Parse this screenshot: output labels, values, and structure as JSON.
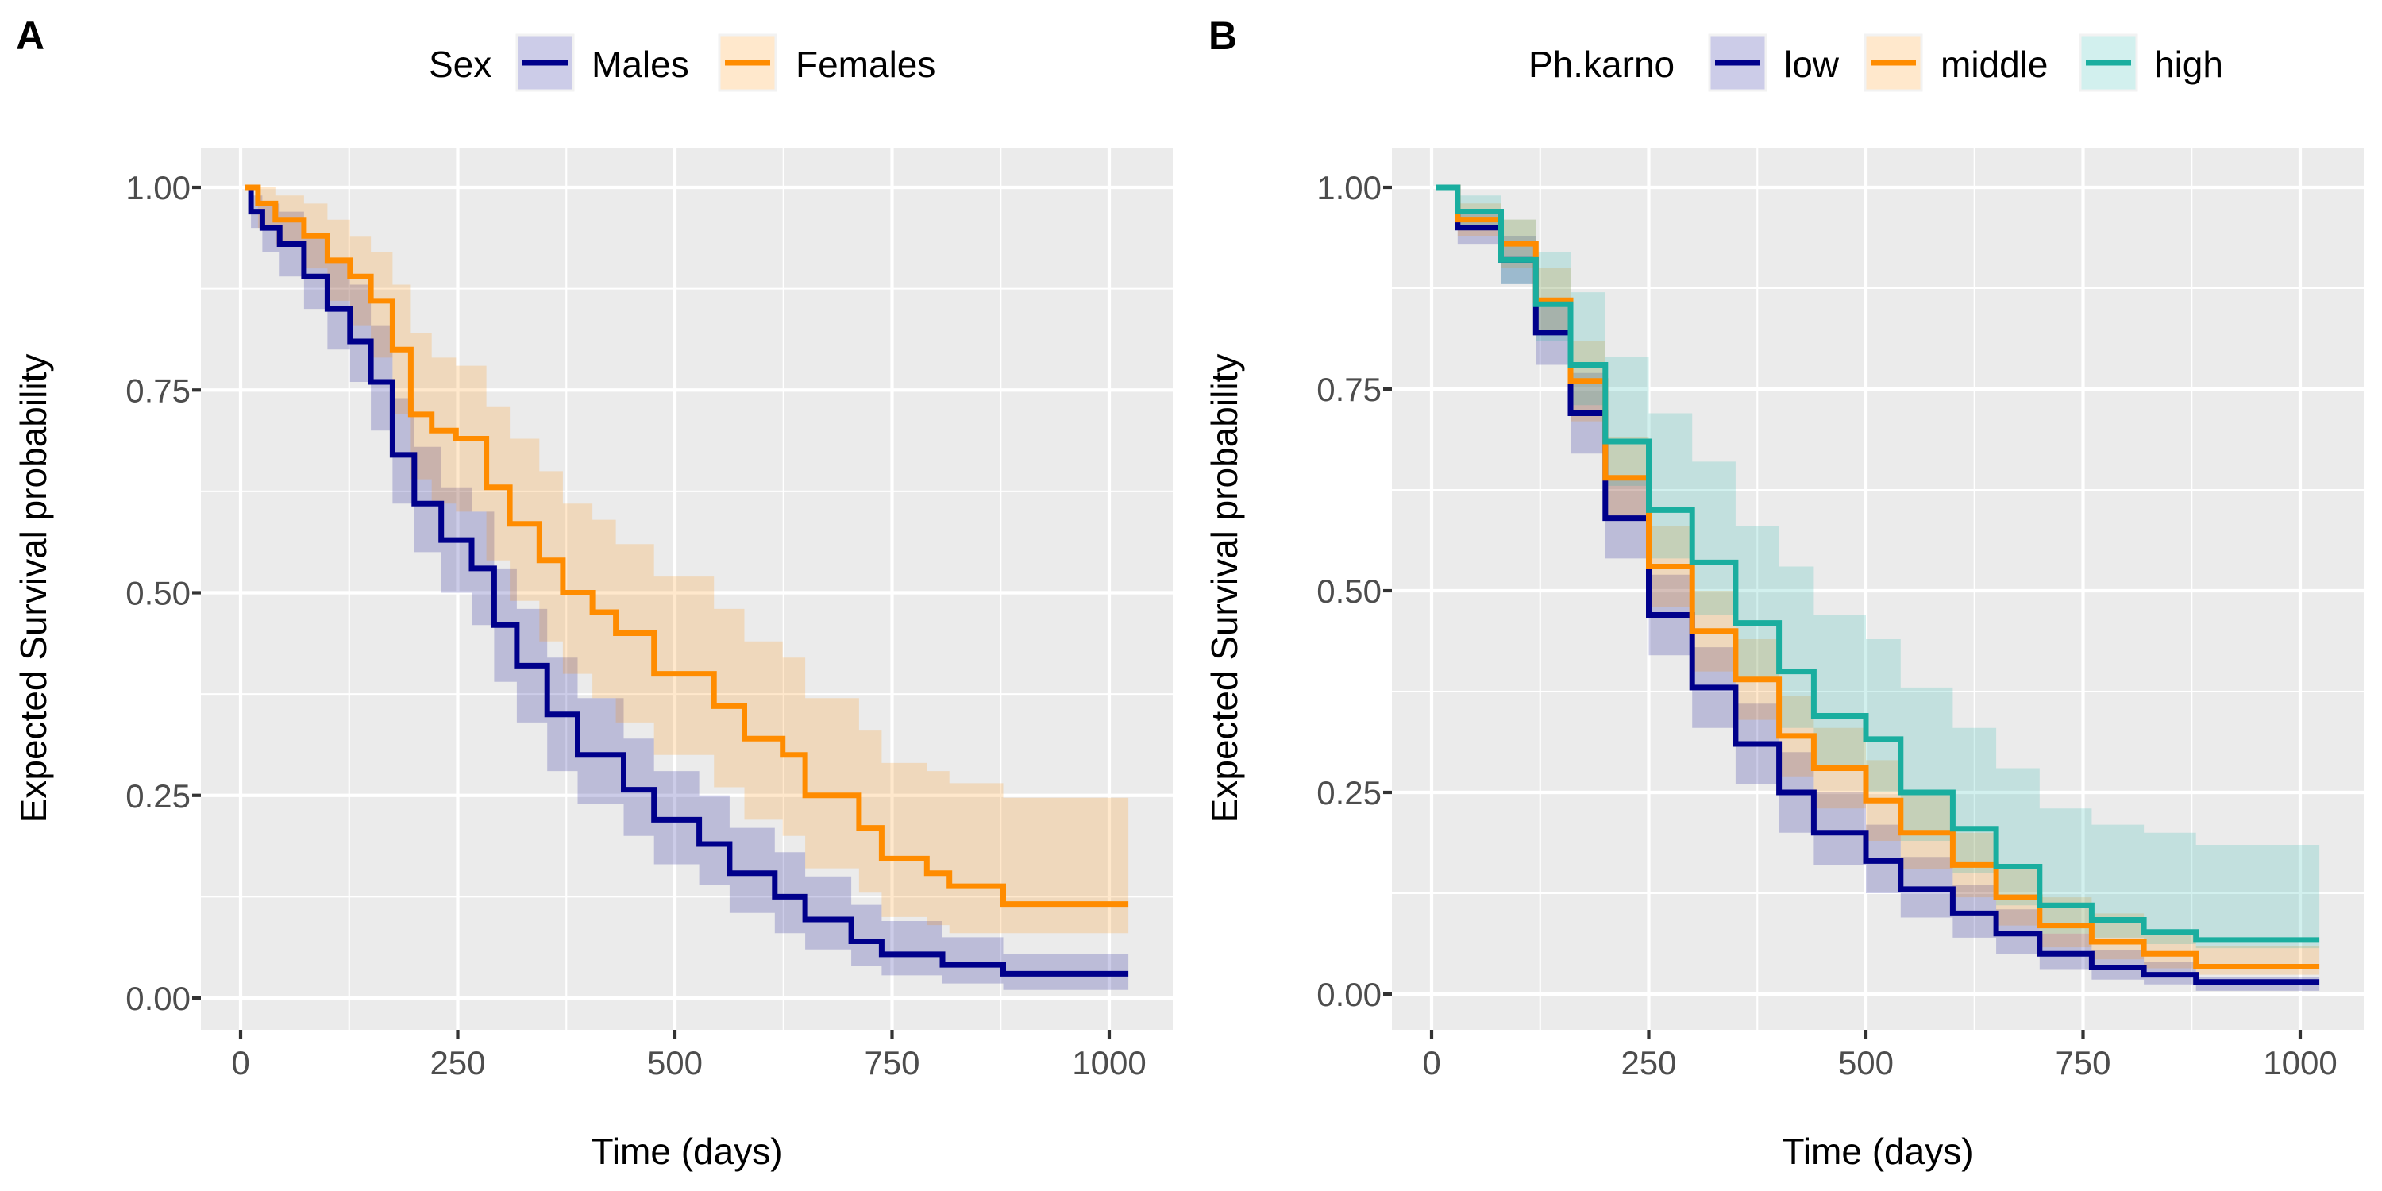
{
  "figure": {
    "panels": [
      {
        "id": "A",
        "letter": "A",
        "legend_title": "Sex",
        "x_title": "Time (days)",
        "y_title": "Expected Survival probability"
      },
      {
        "id": "B",
        "letter": "B",
        "legend_title": "Ph.karno",
        "x_title": "Time (days)",
        "y_title": "Expected Survival probability"
      }
    ]
  },
  "chart_data": [
    {
      "type": "line",
      "subtype": "step-survival-with-confidence-band",
      "panel": "A",
      "title": "",
      "xlabel": "Time (days)",
      "ylabel": "Expected Survival probability",
      "xlim": [
        -45,
        1065
      ],
      "ylim": [
        -0.05,
        1.05
      ],
      "x_ticks": [
        0,
        250,
        500,
        750,
        1000
      ],
      "x_tick_labels": [
        "0",
        "250",
        "500",
        "750",
        "1000"
      ],
      "y_ticks": [
        0,
        0.25,
        0.5,
        0.75,
        1.0
      ],
      "y_tick_labels": [
        "0.00",
        "0.25",
        "0.50",
        "0.75",
        "1.00"
      ],
      "grid": true,
      "legend": {
        "title": "Sex",
        "position": "top"
      },
      "series": [
        {
          "name": "Males",
          "color": "#00008B",
          "fill": "#00008B",
          "x": [
            5,
            12,
            25,
            45,
            73,
            100,
            126,
            150,
            175,
            200,
            231,
            266,
            292,
            318,
            353,
            388,
            423,
            441,
            476,
            528,
            563,
            615,
            650,
            703,
            738,
            808,
            878,
            1022
          ],
          "y": [
            1.0,
            0.97,
            0.95,
            0.93,
            0.89,
            0.85,
            0.81,
            0.76,
            0.67,
            0.61,
            0.565,
            0.53,
            0.46,
            0.41,
            0.35,
            0.3,
            0.3,
            0.257,
            0.22,
            0.19,
            0.154,
            0.125,
            0.097,
            0.07,
            0.054,
            0.041,
            0.03,
            0.03
          ],
          "lower": [
            1.0,
            0.95,
            0.92,
            0.89,
            0.85,
            0.8,
            0.76,
            0.7,
            0.61,
            0.55,
            0.5,
            0.46,
            0.39,
            0.34,
            0.28,
            0.24,
            0.24,
            0.2,
            0.165,
            0.14,
            0.105,
            0.08,
            0.06,
            0.04,
            0.028,
            0.018,
            0.01,
            0.01
          ],
          "upper": [
            1.0,
            0.99,
            0.98,
            0.97,
            0.94,
            0.91,
            0.88,
            0.83,
            0.74,
            0.68,
            0.63,
            0.6,
            0.53,
            0.48,
            0.42,
            0.37,
            0.37,
            0.32,
            0.28,
            0.25,
            0.21,
            0.18,
            0.15,
            0.115,
            0.095,
            0.075,
            0.054,
            0.054
          ]
        },
        {
          "name": "Females",
          "color": "#FF8C00",
          "fill": "#FF8C00",
          "x": [
            5,
            20,
            40,
            73,
            100,
            126,
            150,
            175,
            196,
            220,
            248,
            283,
            310,
            344,
            371,
            405,
            432,
            476,
            528,
            545,
            580,
            624,
            650,
            712,
            738,
            790,
            816,
            878,
            1022
          ],
          "y": [
            1.0,
            0.98,
            0.96,
            0.94,
            0.91,
            0.89,
            0.86,
            0.8,
            0.72,
            0.7,
            0.69,
            0.63,
            0.585,
            0.54,
            0.5,
            0.476,
            0.45,
            0.4,
            0.4,
            0.36,
            0.32,
            0.3,
            0.25,
            0.21,
            0.172,
            0.154,
            0.138,
            0.116,
            0.116
          ],
          "lower": [
            1.0,
            0.95,
            0.93,
            0.9,
            0.86,
            0.83,
            0.79,
            0.72,
            0.64,
            0.61,
            0.6,
            0.54,
            0.49,
            0.44,
            0.4,
            0.37,
            0.34,
            0.3,
            0.3,
            0.26,
            0.22,
            0.2,
            0.16,
            0.13,
            0.1,
            0.09,
            0.08,
            0.08,
            0.08
          ],
          "upper": [
            1.0,
            1.0,
            0.99,
            0.98,
            0.96,
            0.94,
            0.92,
            0.88,
            0.82,
            0.79,
            0.78,
            0.73,
            0.69,
            0.65,
            0.61,
            0.59,
            0.56,
            0.52,
            0.52,
            0.48,
            0.44,
            0.42,
            0.37,
            0.33,
            0.29,
            0.28,
            0.265,
            0.247,
            0.247
          ]
        }
      ]
    },
    {
      "type": "line",
      "subtype": "step-survival-with-confidence-band",
      "panel": "B",
      "title": "",
      "xlabel": "Time (days)",
      "ylabel": "Expected Survival probability",
      "xlim": [
        -45,
        1065
      ],
      "ylim": [
        -0.05,
        1.05
      ],
      "x_ticks": [
        0,
        250,
        500,
        750,
        1000
      ],
      "x_tick_labels": [
        "0",
        "250",
        "500",
        "750",
        "1000"
      ],
      "y_ticks": [
        0,
        0.25,
        0.5,
        0.75,
        1.0
      ],
      "y_tick_labels": [
        "0.00",
        "0.25",
        "0.50",
        "0.75",
        "1.00"
      ],
      "grid": true,
      "legend": {
        "title": "Ph.karno",
        "position": "top"
      },
      "series": [
        {
          "name": "low",
          "color": "#00008B",
          "fill": "#00008B",
          "x": [
            5,
            30,
            80,
            120,
            160,
            200,
            250,
            300,
            350,
            400,
            440,
            500,
            540,
            600,
            650,
            700,
            760,
            820,
            880,
            1022
          ],
          "y": [
            1.0,
            0.95,
            0.91,
            0.82,
            0.72,
            0.59,
            0.47,
            0.38,
            0.31,
            0.25,
            0.2,
            0.165,
            0.13,
            0.1,
            0.075,
            0.05,
            0.033,
            0.024,
            0.015,
            0.015
          ],
          "lower": [
            1.0,
            0.93,
            0.88,
            0.78,
            0.67,
            0.54,
            0.42,
            0.33,
            0.26,
            0.2,
            0.16,
            0.125,
            0.095,
            0.07,
            0.05,
            0.03,
            0.018,
            0.012,
            0.004,
            0.004
          ],
          "upper": [
            1.0,
            0.97,
            0.94,
            0.86,
            0.77,
            0.64,
            0.52,
            0.43,
            0.36,
            0.3,
            0.25,
            0.21,
            0.17,
            0.135,
            0.105,
            0.075,
            0.055,
            0.04,
            0.021,
            0.021
          ]
        },
        {
          "name": "middle",
          "color": "#FF8C00",
          "fill": "#FF8C00",
          "x": [
            5,
            30,
            80,
            120,
            160,
            200,
            250,
            300,
            350,
            400,
            440,
            500,
            540,
            600,
            650,
            700,
            760,
            820,
            880,
            1022
          ],
          "y": [
            1.0,
            0.96,
            0.93,
            0.86,
            0.76,
            0.64,
            0.53,
            0.45,
            0.39,
            0.32,
            0.28,
            0.24,
            0.2,
            0.16,
            0.12,
            0.085,
            0.065,
            0.05,
            0.034,
            0.034
          ],
          "lower": [
            1.0,
            0.94,
            0.9,
            0.82,
            0.71,
            0.59,
            0.48,
            0.4,
            0.34,
            0.27,
            0.23,
            0.19,
            0.155,
            0.12,
            0.085,
            0.058,
            0.043,
            0.032,
            0.024,
            0.024
          ],
          "upper": [
            1.0,
            0.98,
            0.96,
            0.9,
            0.81,
            0.69,
            0.58,
            0.5,
            0.44,
            0.37,
            0.33,
            0.29,
            0.25,
            0.2,
            0.16,
            0.12,
            0.1,
            0.08,
            0.06,
            0.06
          ]
        },
        {
          "name": "high",
          "color": "#1AAE9F",
          "fill": "#20B2AA",
          "x": [
            5,
            30,
            80,
            120,
            160,
            200,
            250,
            300,
            350,
            400,
            440,
            500,
            540,
            600,
            650,
            700,
            760,
            820,
            880,
            1022
          ],
          "y": [
            1.0,
            0.97,
            0.91,
            0.855,
            0.78,
            0.685,
            0.6,
            0.535,
            0.46,
            0.4,
            0.345,
            0.316,
            0.25,
            0.205,
            0.158,
            0.11,
            0.092,
            0.077,
            0.067,
            0.067
          ],
          "lower": [
            1.0,
            0.95,
            0.88,
            0.81,
            0.73,
            0.63,
            0.54,
            0.47,
            0.39,
            0.33,
            0.28,
            0.25,
            0.19,
            0.15,
            0.11,
            0.075,
            0.07,
            0.062,
            0.057,
            0.057
          ],
          "upper": [
            1.0,
            0.99,
            0.96,
            0.92,
            0.87,
            0.79,
            0.72,
            0.66,
            0.58,
            0.53,
            0.47,
            0.44,
            0.38,
            0.33,
            0.28,
            0.23,
            0.21,
            0.2,
            0.185,
            0.185
          ]
        }
      ]
    }
  ]
}
